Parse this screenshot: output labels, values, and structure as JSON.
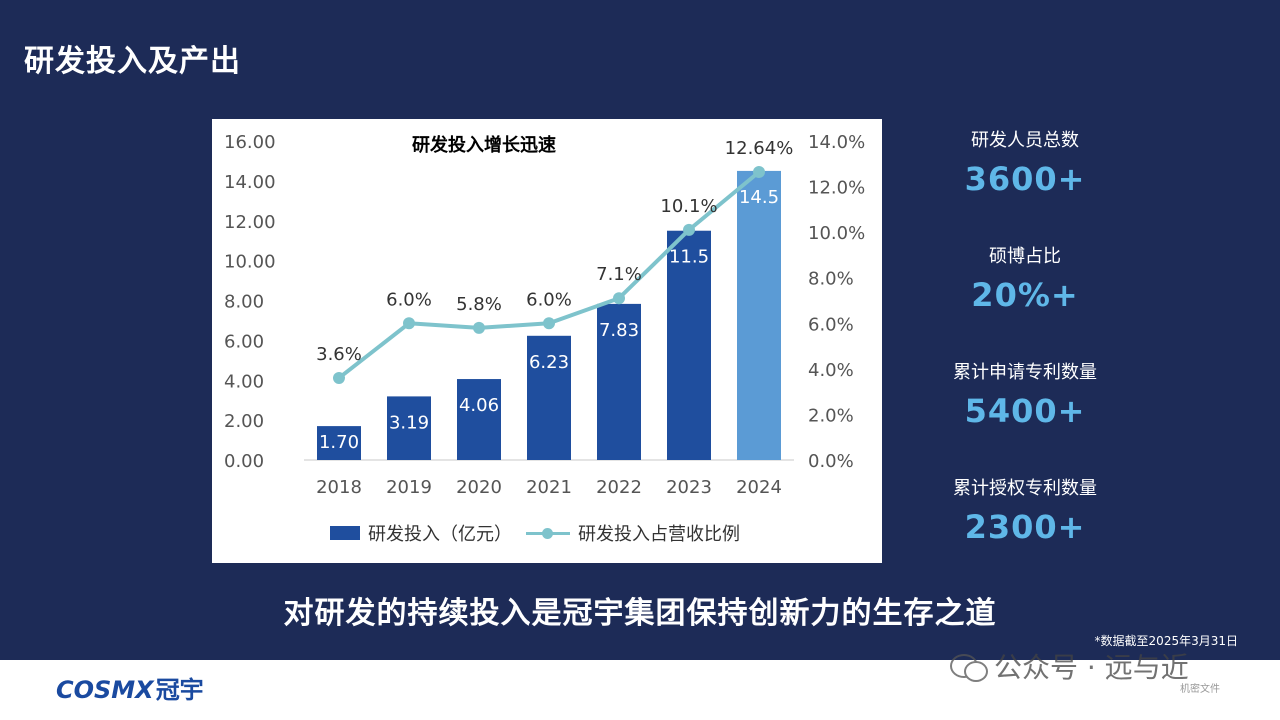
{
  "page": {
    "title": "研发投入及产出",
    "tagline": "对研发的持续投入是冠宇集团保持创新力的生存之道",
    "footnote": "*数据截至2025年3月31日"
  },
  "chart_data": {
    "type": "bar",
    "title": "研发投入增长迅速",
    "categories": [
      "2018",
      "2019",
      "2020",
      "2021",
      "2022",
      "2023",
      "2024"
    ],
    "y_left_ticks": [
      "0.00",
      "2.00",
      "4.00",
      "6.00",
      "8.00",
      "10.00",
      "12.00",
      "14.00",
      "16.00"
    ],
    "y_right_ticks": [
      "0.0%",
      "2.0%",
      "4.0%",
      "6.0%",
      "8.0%",
      "10.0%",
      "12.0%",
      "14.0%"
    ],
    "ylim": [
      0,
      16
    ],
    "ylim_right": [
      0,
      14
    ],
    "series": [
      {
        "name": "研发投入（亿元）",
        "type": "bar",
        "axis": "left",
        "values": [
          1.7,
          3.19,
          4.06,
          6.23,
          7.83,
          11.5,
          14.5
        ],
        "labels": [
          "1.70",
          "3.19",
          "4.06",
          "6.23",
          "7.83",
          "11.5",
          "14.5"
        ],
        "color": "#1f4e9e",
        "highlight_color": "#5b9bd5"
      },
      {
        "name": "研发投入占营收比例",
        "type": "line",
        "axis": "right",
        "values": [
          3.6,
          6.0,
          5.8,
          6.0,
          7.1,
          10.1,
          12.64
        ],
        "labels": [
          "3.6%",
          "6.0%",
          "5.8%",
          "6.0%",
          "7.1%",
          "10.1%",
          "12.64%"
        ],
        "color": "#7ec3cc"
      }
    ],
    "grid": false,
    "legend": "bottom"
  },
  "stats": [
    {
      "label": "研发人员总数",
      "value": "3600+"
    },
    {
      "label": "硕博占比",
      "value": "20%+"
    },
    {
      "label": "累计申请专利数量",
      "value": "5400+"
    },
    {
      "label": "累计授权专利数量",
      "value": "2300+"
    }
  ],
  "footer": {
    "logo_text": "COSMX",
    "logo_cn": "冠宇",
    "watermark": "公众号 · 远与近",
    "watermark_sub": "机密文件"
  }
}
